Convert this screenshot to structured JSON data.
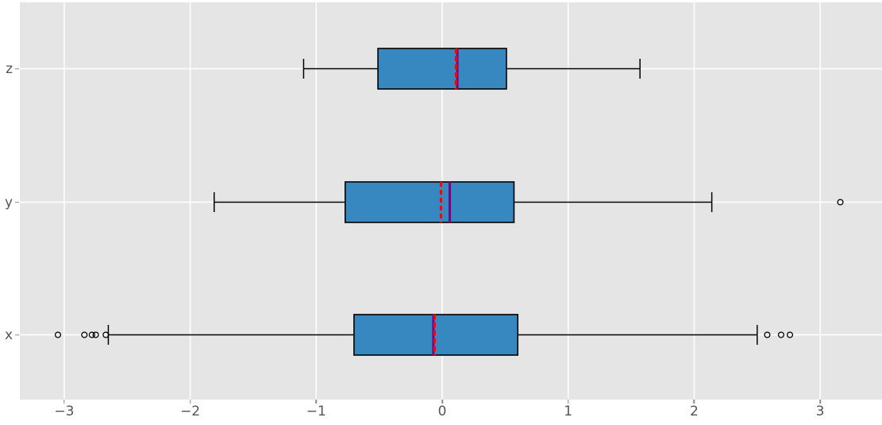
{
  "figure": {
    "background": "#ffffff",
    "plot_background": "#e5e5e5",
    "grid_color": "#ffffff",
    "tick_text_color": "#555555"
  },
  "chart_data": {
    "type": "boxplot",
    "orientation": "horizontal",
    "title": "",
    "xlabel": "",
    "ylabel": "",
    "grid": true,
    "xlim": [
      -3.35,
      3.49
    ],
    "x_ticks": [
      -3,
      -2,
      -1,
      0,
      1,
      2,
      3
    ],
    "x_tick_labels": [
      "−3",
      "−2",
      "−1",
      "0",
      "1",
      "2",
      "3"
    ],
    "categories_top_to_bottom": [
      "z",
      "y",
      "x"
    ],
    "style": {
      "box_fill": "#3787c0",
      "box_edge": "#000000",
      "whisker_color": "#000000",
      "median_color": "#800080",
      "mean_color": "#ff0000",
      "mean_linestyle": "dashed",
      "outlier_edge": "#000000"
    },
    "series": [
      {
        "label": "z",
        "whisker_low": -1.1,
        "q1": -0.51,
        "median": 0.12,
        "mean": 0.11,
        "q3": 0.51,
        "whisker_high": 1.57,
        "outliers": []
      },
      {
        "label": "y",
        "whisker_low": -1.81,
        "q1": -0.77,
        "median": 0.06,
        "mean": -0.01,
        "q3": 0.57,
        "whisker_high": 2.14,
        "outliers": [
          3.16
        ]
      },
      {
        "label": "x",
        "whisker_low": -2.65,
        "q1": -0.7,
        "median": -0.07,
        "mean": -0.06,
        "q3": 0.6,
        "whisker_high": 2.5,
        "outliers": [
          -3.05,
          -2.84,
          -2.78,
          -2.75,
          -2.67,
          2.58,
          2.69,
          2.76
        ]
      }
    ]
  }
}
